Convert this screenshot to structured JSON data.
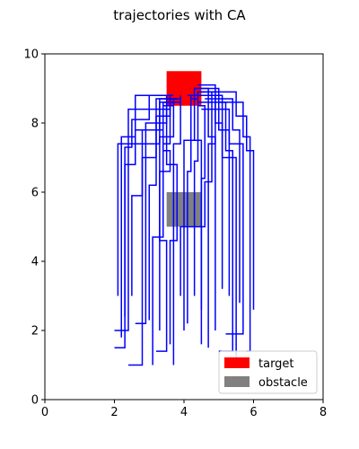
{
  "chart_data": {
    "type": "line",
    "title": "trajectories with CA",
    "xlabel": "",
    "ylabel": "",
    "xlim": [
      0,
      8
    ],
    "ylim": [
      0,
      10
    ],
    "xticks": [
      "0",
      "2",
      "4",
      "6",
      "8"
    ],
    "yticks": [
      "0",
      "2",
      "4",
      "6",
      "8",
      "10"
    ],
    "grid": false,
    "legend_position": "lower-right",
    "legend": [
      {
        "label": "target",
        "color": "#ff0000"
      },
      {
        "label": "obstacle",
        "color": "#808080"
      }
    ],
    "target": {
      "x0": 3.5,
      "y0": 8.5,
      "x1": 4.5,
      "y1": 9.5,
      "color": "#ff0000"
    },
    "obstacle": {
      "x0": 3.5,
      "y0": 5.0,
      "x1": 4.5,
      "y1": 6.0,
      "color": "#808080"
    },
    "trajectory_color": "#0000ff",
    "series": [
      {
        "points": [
          [
            2.1,
            3.0
          ],
          [
            2.1,
            7.4
          ],
          [
            3.3,
            7.4
          ],
          [
            3.3,
            8.7
          ],
          [
            3.9,
            8.7
          ]
        ]
      },
      {
        "points": [
          [
            2.0,
            1.5
          ],
          [
            2.3,
            1.5
          ],
          [
            2.3,
            6.8
          ],
          [
            2.6,
            6.8
          ],
          [
            2.6,
            7.8
          ],
          [
            3.4,
            7.8
          ],
          [
            3.4,
            8.6
          ],
          [
            3.8,
            8.6
          ]
        ]
      },
      {
        "points": [
          [
            2.0,
            2.0
          ],
          [
            2.4,
            2.0
          ],
          [
            2.4,
            8.4
          ],
          [
            3.6,
            8.4
          ],
          [
            3.6,
            8.8
          ]
        ]
      },
      {
        "points": [
          [
            2.2,
            1.8
          ],
          [
            2.2,
            7.6
          ],
          [
            2.6,
            7.6
          ],
          [
            2.6,
            8.8
          ],
          [
            3.5,
            8.8
          ]
        ]
      },
      {
        "points": [
          [
            2.4,
            1.0
          ],
          [
            2.8,
            1.0
          ],
          [
            2.8,
            7.0
          ],
          [
            3.2,
            7.0
          ],
          [
            3.2,
            8.7
          ],
          [
            3.8,
            8.7
          ]
        ]
      },
      {
        "points": [
          [
            2.6,
            2.2
          ],
          [
            2.9,
            2.2
          ],
          [
            2.9,
            8.0
          ],
          [
            3.5,
            8.0
          ],
          [
            3.5,
            8.6
          ]
        ]
      },
      {
        "points": [
          [
            2.5,
            3.0
          ],
          [
            2.5,
            5.9
          ],
          [
            2.8,
            5.9
          ],
          [
            2.8,
            7.8
          ],
          [
            3.3,
            7.8
          ],
          [
            3.3,
            8.6
          ],
          [
            3.9,
            8.6
          ]
        ]
      },
      {
        "points": [
          [
            3.2,
            1.4
          ],
          [
            3.5,
            1.4
          ],
          [
            3.5,
            4.6
          ],
          [
            3.3,
            4.6
          ],
          [
            3.3,
            7.6
          ],
          [
            3.7,
            7.6
          ],
          [
            3.7,
            8.7
          ]
        ]
      },
      {
        "points": [
          [
            3.1,
            1.0
          ],
          [
            3.1,
            4.7
          ],
          [
            3.4,
            4.7
          ],
          [
            3.4,
            7.4
          ],
          [
            3.6,
            7.4
          ],
          [
            3.6,
            8.7
          ],
          [
            3.8,
            8.7
          ]
        ]
      },
      {
        "points": [
          [
            3.3,
            2.0
          ],
          [
            3.3,
            6.6
          ],
          [
            3.6,
            6.6
          ],
          [
            3.6,
            7.2
          ],
          [
            3.4,
            7.2
          ],
          [
            3.4,
            8.5
          ],
          [
            3.7,
            8.5
          ]
        ]
      },
      {
        "points": [
          [
            3.6,
            1.6
          ],
          [
            3.6,
            4.6
          ],
          [
            3.8,
            4.6
          ],
          [
            3.8,
            6.8
          ],
          [
            3.5,
            6.8
          ],
          [
            3.5,
            8.8
          ]
        ]
      },
      {
        "points": [
          [
            3.7,
            1.0
          ],
          [
            3.7,
            7.4
          ],
          [
            3.9,
            7.4
          ],
          [
            3.9,
            8.8
          ]
        ]
      },
      {
        "points": [
          [
            4.1,
            2.2
          ],
          [
            4.1,
            6.6
          ],
          [
            4.2,
            6.6
          ],
          [
            4.2,
            8.7
          ],
          [
            4.4,
            8.7
          ]
        ]
      },
      {
        "points": [
          [
            4.3,
            3.0
          ],
          [
            4.3,
            6.9
          ],
          [
            4.4,
            6.9
          ],
          [
            4.4,
            8.9
          ],
          [
            4.6,
            8.9
          ]
        ]
      },
      {
        "points": [
          [
            4.5,
            1.6
          ],
          [
            4.5,
            7.5
          ],
          [
            4.2,
            7.5
          ],
          [
            4.2,
            8.8
          ],
          [
            4.8,
            8.8
          ]
        ]
      },
      {
        "points": [
          [
            4.5,
            2.6
          ],
          [
            4.5,
            6.4
          ],
          [
            4.6,
            6.4
          ],
          [
            4.6,
            8.5
          ],
          [
            4.4,
            8.5
          ]
        ]
      },
      {
        "points": [
          [
            4.7,
            1.5
          ],
          [
            4.7,
            7.4
          ],
          [
            4.9,
            7.4
          ],
          [
            4.9,
            8.8
          ],
          [
            4.1,
            8.8
          ]
        ]
      },
      {
        "points": [
          [
            5.0,
            1.4
          ],
          [
            5.4,
            1.4
          ],
          [
            5.4,
            7.2
          ],
          [
            5.2,
            7.2
          ],
          [
            5.2,
            8.6
          ],
          [
            4.4,
            8.6
          ]
        ]
      },
      {
        "points": [
          [
            5.2,
            1.9
          ],
          [
            5.7,
            1.9
          ],
          [
            5.7,
            7.4
          ],
          [
            5.3,
            7.4
          ],
          [
            5.3,
            8.4
          ],
          [
            4.5,
            8.4
          ]
        ]
      },
      {
        "points": [
          [
            5.3,
            3.0
          ],
          [
            5.3,
            7.8
          ],
          [
            5.0,
            7.8
          ],
          [
            5.0,
            9.0
          ],
          [
            4.3,
            9.0
          ]
        ]
      },
      {
        "points": [
          [
            5.5,
            1.0
          ],
          [
            5.5,
            7.0
          ],
          [
            5.1,
            7.0
          ],
          [
            5.1,
            8.8
          ],
          [
            4.2,
            8.8
          ]
        ]
      },
      {
        "points": [
          [
            5.6,
            2.8
          ],
          [
            5.6,
            7.8
          ],
          [
            5.4,
            7.8
          ],
          [
            5.4,
            8.7
          ],
          [
            4.6,
            8.7
          ]
        ]
      },
      {
        "points": [
          [
            5.8,
            1.4
          ],
          [
            5.9,
            1.4
          ],
          [
            5.9,
            7.6
          ],
          [
            5.7,
            7.6
          ],
          [
            5.7,
            8.6
          ],
          [
            5.0,
            8.6
          ],
          [
            5.0,
            8.9
          ],
          [
            4.4,
            8.9
          ]
        ]
      },
      {
        "points": [
          [
            6.0,
            2.6
          ],
          [
            6.0,
            7.2
          ],
          [
            5.8,
            7.2
          ],
          [
            5.8,
            8.2
          ],
          [
            5.5,
            8.2
          ],
          [
            5.5,
            8.9
          ],
          [
            4.5,
            8.9
          ]
        ]
      },
      {
        "points": [
          [
            4.0,
            2.0
          ],
          [
            4.0,
            7.5
          ],
          [
            4.3,
            7.5
          ],
          [
            4.3,
            9.0
          ],
          [
            4.5,
            9.0
          ]
        ]
      },
      {
        "points": [
          [
            3.9,
            3.0
          ],
          [
            3.9,
            5.0
          ],
          [
            4.6,
            5.0
          ],
          [
            4.6,
            6.3
          ],
          [
            4.8,
            6.3
          ],
          [
            4.8,
            8.9
          ]
        ]
      },
      {
        "points": [
          [
            4.9,
            2.0
          ],
          [
            4.9,
            7.6
          ],
          [
            4.7,
            7.6
          ],
          [
            4.7,
            9.0
          ],
          [
            4.3,
            9.0
          ]
        ]
      },
      {
        "points": [
          [
            5.1,
            3.2
          ],
          [
            5.1,
            8.0
          ],
          [
            4.9,
            8.0
          ],
          [
            4.9,
            9.1
          ],
          [
            4.4,
            9.1
          ]
        ]
      },
      {
        "points": [
          [
            2.3,
            2.4
          ],
          [
            2.3,
            7.3
          ],
          [
            2.5,
            7.3
          ],
          [
            2.5,
            8.1
          ],
          [
            3.0,
            8.1
          ],
          [
            3.0,
            8.8
          ],
          [
            3.7,
            8.8
          ]
        ]
      },
      {
        "points": [
          [
            3.0,
            2.3
          ],
          [
            3.0,
            6.2
          ],
          [
            3.2,
            6.2
          ],
          [
            3.2,
            8.2
          ],
          [
            3.6,
            8.2
          ],
          [
            3.6,
            8.6
          ]
        ]
      }
    ]
  }
}
